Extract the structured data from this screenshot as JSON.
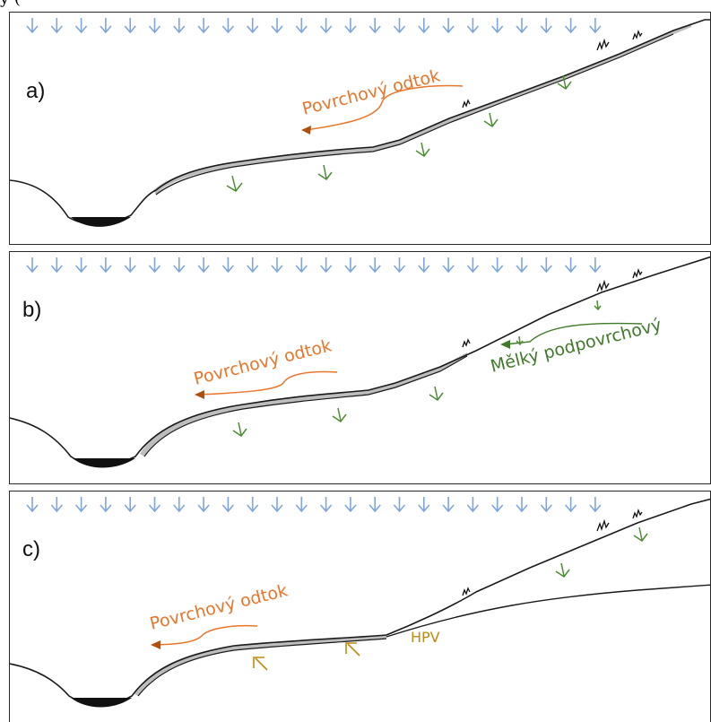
{
  "header_fragment": "y (",
  "colors": {
    "rain": "#7ea6dc",
    "surface_runoff": "#e8762b",
    "infiltration": "#4d8b34",
    "subsurface": "#3f7a2a",
    "groundwater": "#c08a10",
    "terrain": "#1a1a1a",
    "saturated_layer": "#bdbdbd"
  },
  "panels": [
    {
      "id": "a",
      "label": "a)",
      "labels": {
        "surface_runoff": "Povrchový odtok"
      }
    },
    {
      "id": "b",
      "label": "b)",
      "labels": {
        "surface_runoff": "Povrchový odtok",
        "subsurface": "Mělký podpovrchový"
      }
    },
    {
      "id": "c",
      "label": "c)",
      "labels": {
        "surface_runoff": "Povrchový odtok",
        "groundwater": "HPV"
      }
    }
  ]
}
